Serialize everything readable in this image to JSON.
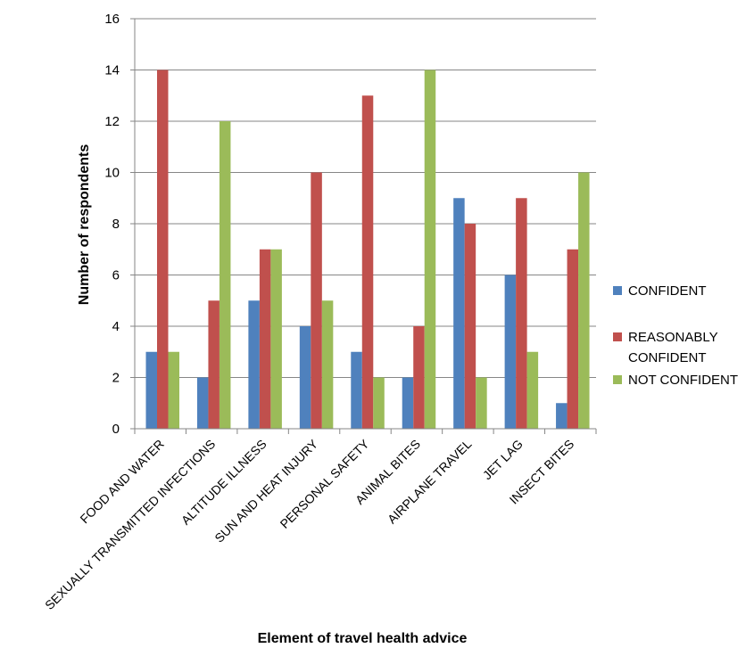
{
  "chart_data": {
    "type": "bar",
    "title": "",
    "xlabel": "Element of travel health advice",
    "ylabel": "Number of respondents",
    "ylim": [
      0,
      16
    ],
    "yticks": [
      0,
      2,
      4,
      6,
      8,
      10,
      12,
      14,
      16
    ],
    "grid": true,
    "legend_position": "right",
    "categories": [
      "FOOD AND WATER",
      "SEXUALLY TRANSMITTED INFECTIONS",
      "ALTITUDE ILLNESS",
      "SUN AND HEAT INJURY",
      "PERSONAL SAFETY",
      "ANIMAL BITES",
      "AIRPLANE TRAVEL",
      "JET LAG",
      "INSECT BITES"
    ],
    "series": [
      {
        "name": "CONFIDENT",
        "color": "#4F81BD",
        "values": [
          3,
          2,
          5,
          4,
          3,
          2,
          9,
          6,
          1
        ]
      },
      {
        "name": "REASONABLY CONFIDENT",
        "legend_lines": [
          "REASONABLY",
          "CONFIDENT"
        ],
        "color": "#C0504D",
        "values": [
          14,
          5,
          7,
          10,
          13,
          4,
          8,
          9,
          7
        ]
      },
      {
        "name": "NOT CONFIDENT",
        "color": "#9BBB59",
        "values": [
          3,
          12,
          7,
          5,
          2,
          14,
          2,
          3,
          10
        ]
      }
    ]
  }
}
